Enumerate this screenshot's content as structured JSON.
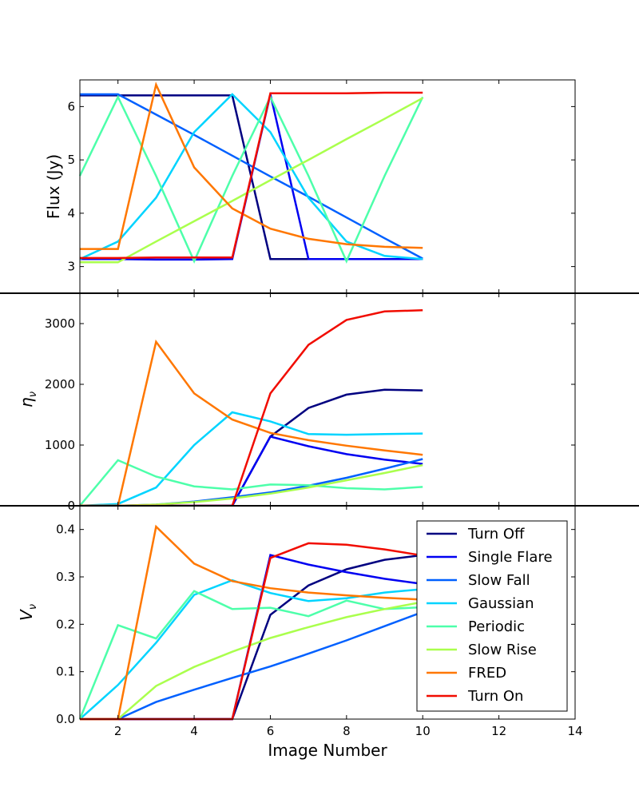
{
  "chart_data": {
    "type": "line",
    "x": [
      1,
      2,
      3,
      4,
      5,
      6,
      7,
      8,
      9,
      10
    ],
    "xlabel": "Image Number",
    "xlim": [
      1,
      14
    ],
    "xticks": [
      2,
      4,
      6,
      8,
      10,
      12,
      14
    ],
    "series": [
      {
        "name": "Turn Off",
        "color": "#000080"
      },
      {
        "name": "Single Flare",
        "color": "#0000f1"
      },
      {
        "name": "Slow Fall",
        "color": "#0060ff"
      },
      {
        "name": "Gaussian",
        "color": "#00d4ff"
      },
      {
        "name": "Periodic",
        "color": "#4dffaa"
      },
      {
        "name": "Slow Rise",
        "color": "#aaff4d"
      },
      {
        "name": "FRED",
        "color": "#ff7700"
      },
      {
        "name": "Turn On",
        "color": "#f10c00"
      }
    ],
    "panels": [
      {
        "ylabel": "Flux (Jy)",
        "ylim": [
          2.5,
          6.5
        ],
        "yticks": [
          3,
          4,
          5,
          6
        ],
        "tick_labels": [
          "3",
          "4",
          "5",
          "6"
        ],
        "values": {
          "Turn Off": [
            6.21,
            6.21,
            6.21,
            6.21,
            6.21,
            3.14,
            3.14,
            3.14,
            3.14,
            3.14
          ],
          "Single Flare": [
            3.14,
            3.14,
            3.13,
            3.13,
            3.14,
            6.23,
            3.14,
            3.14,
            3.14,
            3.14
          ],
          "Slow Fall": [
            6.23,
            6.23,
            5.85,
            5.47,
            5.08,
            4.69,
            4.31,
            3.92,
            3.53,
            3.15
          ],
          "Gaussian": [
            3.14,
            3.47,
            4.29,
            5.52,
            6.23,
            5.52,
            4.29,
            3.47,
            3.2,
            3.14
          ],
          "Periodic": [
            4.7,
            6.18,
            4.7,
            3.1,
            4.7,
            6.18,
            4.7,
            3.1,
            4.7,
            6.18
          ],
          "Slow Rise": [
            3.08,
            3.08,
            3.47,
            3.85,
            4.23,
            4.62,
            5.0,
            5.39,
            5.77,
            6.16
          ],
          "FRED": [
            3.33,
            3.33,
            6.41,
            4.86,
            4.09,
            3.71,
            3.52,
            3.42,
            3.37,
            3.35
          ],
          "Turn On": [
            3.16,
            3.16,
            3.17,
            3.17,
            3.17,
            6.25,
            6.25,
            6.25,
            6.26,
            6.26
          ]
        }
      },
      {
        "ylabel": "η",
        "ylabel_sub": "ν",
        "ylim": [
          0,
          3500
        ],
        "yticks": [
          0,
          1000,
          2000,
          3000
        ],
        "tick_labels": [
          "0",
          "1000",
          "2000",
          "3000"
        ],
        "values": {
          "Turn Off": [
            0,
            0,
            0,
            0,
            0,
            1140,
            1610,
            1830,
            1910,
            1900
          ],
          "Single Flare": [
            0,
            0,
            0,
            0,
            0,
            1140,
            980,
            850,
            760,
            690
          ],
          "Slow Fall": [
            0,
            0,
            20,
            70,
            140,
            220,
            330,
            460,
            610,
            770
          ],
          "Gaussian": [
            0,
            30,
            300,
            1000,
            1540,
            1390,
            1180,
            1170,
            1180,
            1190
          ],
          "Periodic": [
            0,
            750,
            480,
            320,
            270,
            350,
            340,
            290,
            270,
            310
          ],
          "Slow Rise": [
            0,
            0,
            20,
            60,
            120,
            200,
            300,
            420,
            540,
            670
          ],
          "FRED": [
            0,
            0,
            2700,
            1850,
            1420,
            1200,
            1080,
            990,
            910,
            840
          ],
          "Turn On": [
            0,
            0,
            0,
            0,
            0,
            1850,
            2650,
            3060,
            3200,
            3220
          ]
        }
      },
      {
        "ylabel": "V",
        "ylabel_sub": "ν",
        "ylim": [
          0,
          0.45
        ],
        "yticks": [
          0,
          0.1,
          0.2,
          0.3,
          0.4
        ],
        "tick_labels": [
          "0.0",
          "0.1",
          "0.2",
          "0.3",
          "0.4"
        ],
        "values": {
          "Turn Off": [
            0,
            0,
            0,
            0,
            0,
            0.22,
            0.282,
            0.316,
            0.336,
            0.346
          ],
          "Single Flare": [
            0,
            0,
            0,
            0,
            0,
            0.346,
            0.326,
            0.31,
            0.296,
            0.285
          ],
          "Slow Fall": [
            0,
            0,
            0.036,
            0.062,
            0.087,
            0.111,
            0.138,
            0.166,
            0.196,
            0.226
          ],
          "Gaussian": [
            0,
            0.072,
            0.161,
            0.262,
            0.293,
            0.266,
            0.249,
            0.255,
            0.267,
            0.274
          ],
          "Periodic": [
            0,
            0.198,
            0.17,
            0.27,
            0.232,
            0.235,
            0.217,
            0.25,
            0.232,
            0.236
          ],
          "Slow Rise": [
            0,
            0,
            0.07,
            0.11,
            0.142,
            0.171,
            0.194,
            0.215,
            0.232,
            0.247
          ],
          "FRED": [
            0,
            0,
            0.406,
            0.328,
            0.291,
            0.276,
            0.267,
            0.261,
            0.256,
            0.252
          ],
          "Turn On": [
            0,
            0,
            0,
            0,
            0,
            0.34,
            0.371,
            0.368,
            0.358,
            0.345
          ]
        }
      }
    ],
    "legend": {
      "panel": 2,
      "placement": "top-right"
    }
  }
}
